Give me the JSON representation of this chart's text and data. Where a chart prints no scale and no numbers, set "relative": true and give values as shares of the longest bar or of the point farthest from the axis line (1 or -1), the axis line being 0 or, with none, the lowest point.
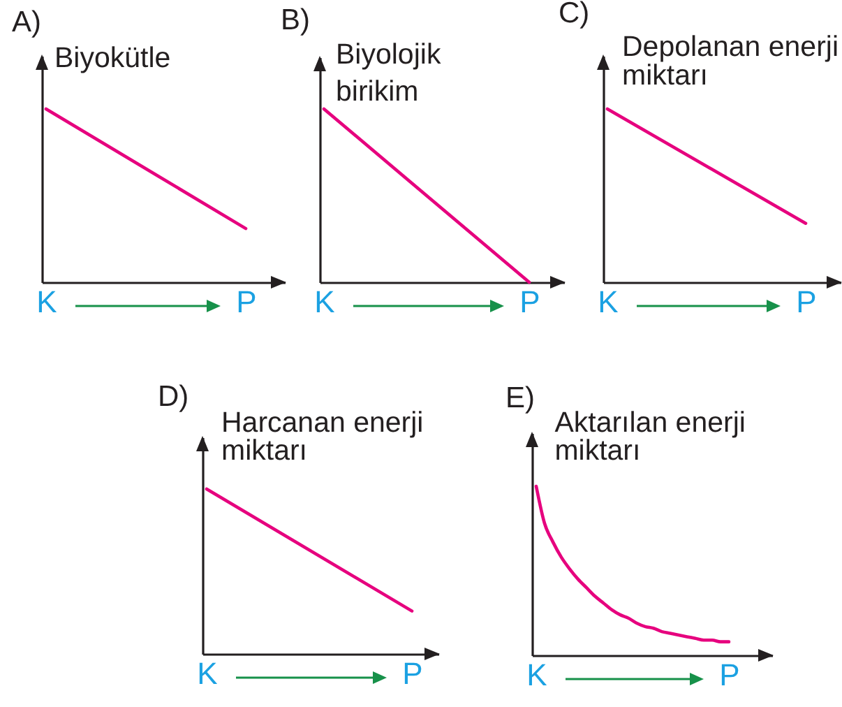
{
  "chart_data": [
    {
      "type": "line",
      "title": "A)",
      "ylabel": "Biyokütle",
      "categories": [
        "K",
        "P"
      ],
      "values": [
        1,
        0.31
      ],
      "color": "#e6007e",
      "relative": true
    },
    {
      "type": "line",
      "title": "B)",
      "ylabel": "Biyolojik birikim",
      "categories": [
        "K",
        "P"
      ],
      "values": [
        1,
        0
      ],
      "color": "#e6007e",
      "relative": true
    },
    {
      "type": "line",
      "title": "C)",
      "ylabel": "Depolanan enerji miktarı",
      "categories": [
        "K",
        "P"
      ],
      "values": [
        1,
        0.34
      ],
      "color": "#e6007e",
      "relative": true
    },
    {
      "type": "line",
      "title": "D)",
      "ylabel": "Harcanan enerji miktarı",
      "categories": [
        "K",
        "P"
      ],
      "values": [
        1,
        0.26
      ],
      "color": "#e6007e",
      "relative": true
    },
    {
      "type": "line",
      "title": "E)",
      "ylabel": "Aktarılan enerji miktarı",
      "categories": [
        "K",
        null,
        null,
        null,
        null,
        null,
        null,
        null,
        null,
        null,
        null,
        null,
        null,
        null,
        null,
        null,
        null,
        null,
        null,
        null,
        null,
        null,
        null,
        "P"
      ],
      "values": [
        1,
        0.78,
        0.67,
        0.58,
        0.51,
        0.45,
        0.4,
        0.35,
        0.31,
        0.27,
        0.24,
        0.22,
        0.19,
        0.17,
        0.16,
        0.14,
        0.13,
        0.12,
        0.11,
        0.1,
        0.09,
        0.09,
        0.08,
        0.08
      ],
      "color": "#e6007e",
      "relative": true
    }
  ]
}
